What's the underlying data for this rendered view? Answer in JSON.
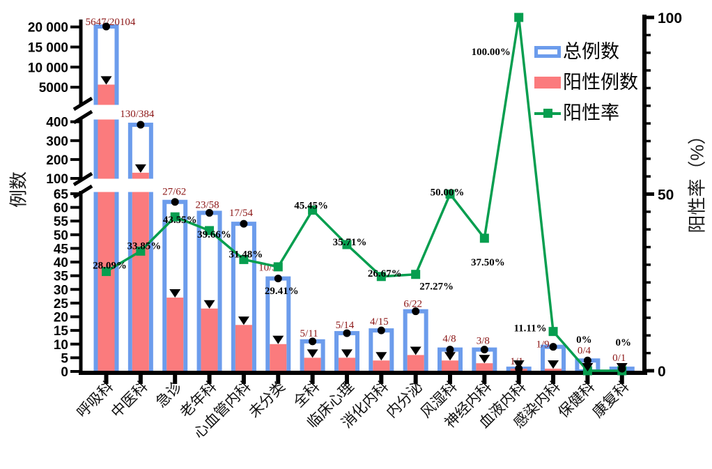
{
  "figure": {
    "legend": [
      {
        "label": "总例数",
        "swatch": "outlined-bar"
      },
      {
        "label": "阳性例数",
        "swatch": "filled-bar"
      },
      {
        "label": "阳性率",
        "swatch": "line-with-square"
      }
    ]
  },
  "chart_data": {
    "type": "bar",
    "combo": "grouped-overlay-bar-plus-line",
    "title": "",
    "legend_position": "top-right",
    "grid": false,
    "categories": [
      "呼吸科",
      "中医科",
      "急诊",
      "老年科",
      "心血管内科",
      "未分类",
      "全科",
      "临床心理",
      "消化内科",
      "内分泌",
      "风湿科",
      "神经内科",
      "血液内科",
      "感染内科",
      "保健科",
      "康复科"
    ],
    "series": [
      {
        "name": "总例数",
        "type": "bar",
        "style": "outlined",
        "values": [
          20104,
          384,
          62,
          58,
          54,
          34,
          11,
          14,
          15,
          22,
          8,
          8,
          1,
          9,
          4,
          1
        ]
      },
      {
        "name": "阳性例数",
        "type": "bar",
        "style": "filled",
        "values": [
          5647,
          130,
          27,
          23,
          17,
          10,
          5,
          5,
          4,
          6,
          4,
          3,
          1,
          1,
          0,
          0
        ]
      },
      {
        "name": "阳性率",
        "type": "line",
        "unit": "%",
        "axis": "right",
        "values": [
          28.09,
          33.85,
          43.55,
          39.66,
          31.48,
          29.41,
          45.45,
          35.71,
          26.67,
          27.27,
          50.0,
          37.5,
          100.0,
          11.11,
          0,
          0
        ]
      }
    ],
    "point_labels": {
      "fractions": [
        "5647/20104",
        "130/384",
        "27/62",
        "23/58",
        "17/54",
        "10/34",
        "5/11",
        "5/14",
        "4/15",
        "6/22",
        "4/8",
        "3/8",
        "1/1",
        "1/9",
        "0/4",
        "0/1"
      ],
      "percents": [
        "28.09%",
        "33.85%",
        "43.55%",
        "39.66%",
        "31.48%",
        "29.41%",
        "45.45%",
        "35.71%",
        "26.67%",
        "27.27%",
        "50.00%",
        "37.50%",
        "100.00%",
        "11.11%",
        "0%",
        "0%"
      ]
    },
    "left_axis": {
      "title": "例数",
      "broken": true,
      "segments": [
        {
          "values": [
            0,
            5,
            10,
            15,
            20,
            25,
            30,
            35,
            40,
            45,
            50,
            55,
            60,
            65
          ],
          "labels": [
            "0",
            "5",
            "10",
            "15",
            "20",
            "25",
            "30",
            "35",
            "40",
            "45",
            "50",
            "55",
            "60",
            "65"
          ]
        },
        {
          "values": [
            100,
            200,
            300,
            400
          ],
          "labels": [
            "100",
            "200",
            "300",
            "400"
          ]
        },
        {
          "values": [
            5000,
            10000,
            15000,
            20000
          ],
          "labels": [
            "5000",
            "10 000",
            "15 000",
            "20 000"
          ]
        }
      ]
    },
    "right_axis": {
      "title": "阳性率（%）",
      "range": [
        0,
        100
      ],
      "values": [
        0,
        50,
        100
      ],
      "labels": [
        "0",
        "50",
        "100"
      ],
      "minor_tick_step": 5
    },
    "colors": {
      "total_bar": "#6C9CEC",
      "positive_bar": "#FB7B7D",
      "rate_line": "#069E4F",
      "fraction_label": "#8B1515",
      "percent_label": "#000000",
      "axis": "#000000"
    }
  }
}
